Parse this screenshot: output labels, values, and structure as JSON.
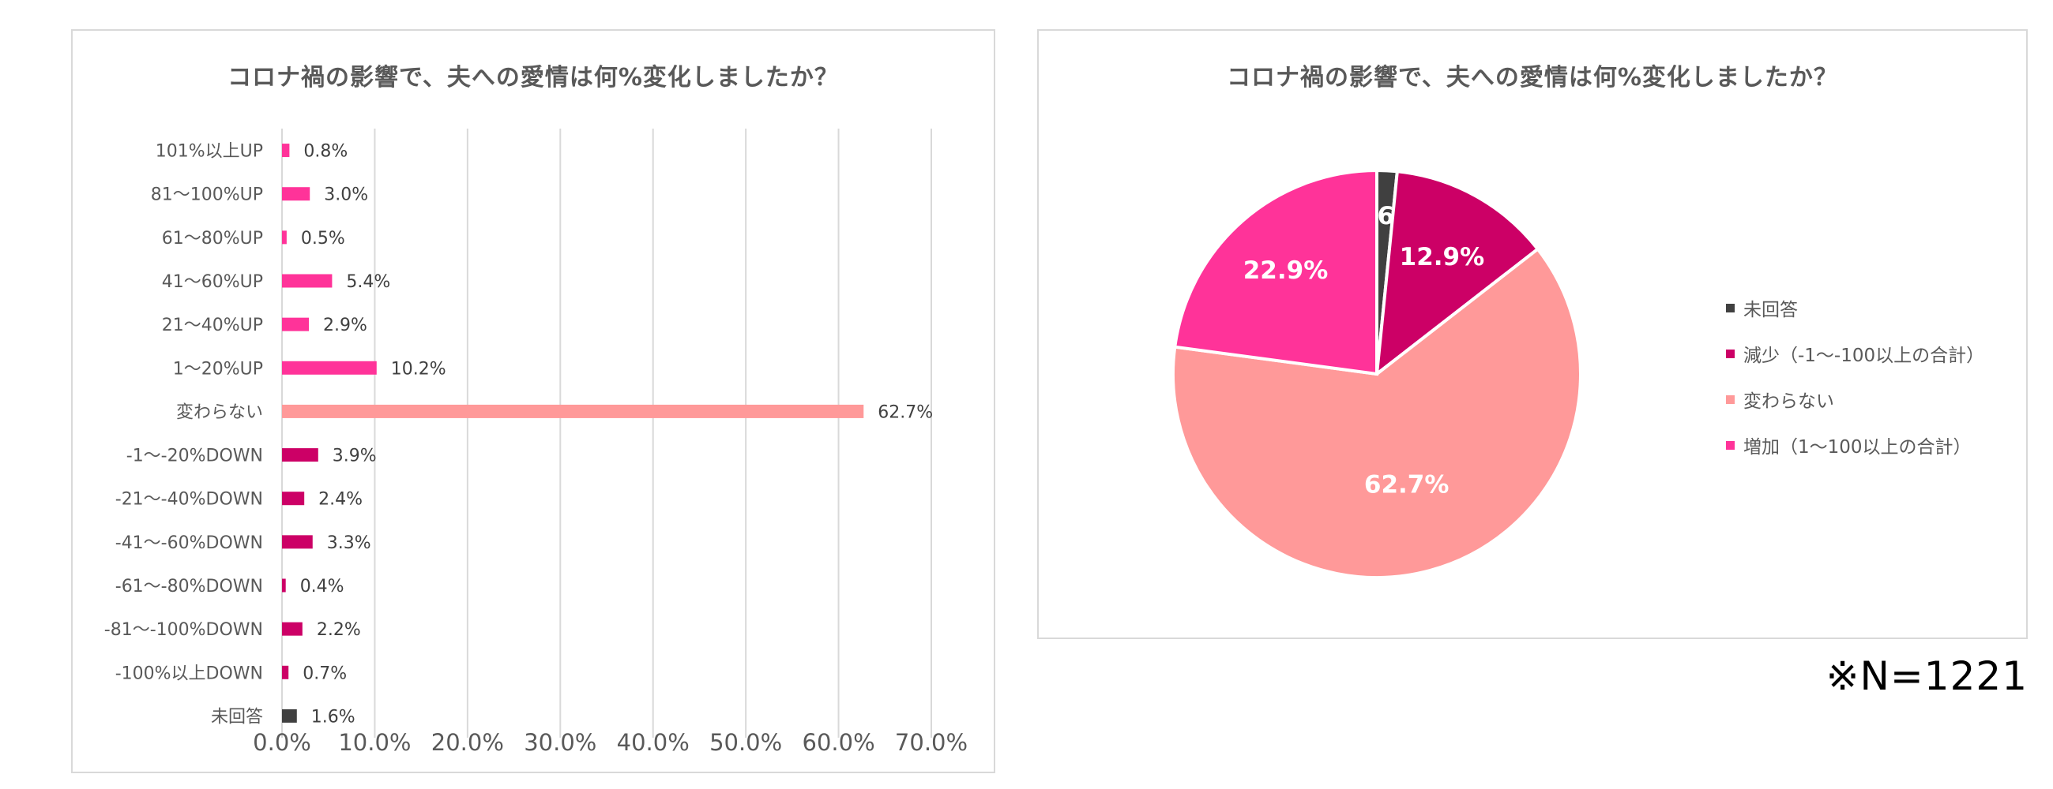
{
  "chart_data": [
    {
      "type": "bar",
      "orientation": "horizontal",
      "title": "コロナ禍の影響で、夫への愛情は何%変化しましたか？",
      "categories": [
        "101%以上UP",
        "81〜100%UP",
        "61〜80%UP",
        "41〜60%UP",
        "21〜40%UP",
        "1〜20%UP",
        "変わらない",
        "-1〜-20%DOWN",
        "-21〜-40%DOWN",
        "-41〜-60%DOWN",
        "-61〜-80%DOWN",
        "-81〜-100%DOWN",
        "-100%以上DOWN",
        "未回答"
      ],
      "values": [
        0.8,
        3.0,
        0.5,
        5.4,
        2.9,
        10.2,
        62.7,
        3.9,
        2.4,
        3.3,
        0.4,
        2.2,
        0.7,
        1.6
      ],
      "value_labels": [
        "0.8%",
        "3.0%",
        "0.5%",
        "5.4%",
        "2.9%",
        "10.2%",
        "62.7%",
        "3.9%",
        "2.4%",
        "3.3%",
        "0.4%",
        "2.2%",
        "0.7%",
        "1.6%"
      ],
      "bar_colors": [
        "#ff3399",
        "#ff3399",
        "#ff3399",
        "#ff3399",
        "#ff3399",
        "#ff3399",
        "#ff9999",
        "#cc0066",
        "#cc0066",
        "#cc0066",
        "#cc0066",
        "#cc0066",
        "#cc0066",
        "#404040"
      ],
      "xlim": [
        0,
        70
      ],
      "x_tick_labels": [
        "0.0%",
        "10.0%",
        "20.0%",
        "30.0%",
        "40.0%",
        "50.0%",
        "60.0%",
        "70.0%"
      ],
      "grid": true
    },
    {
      "type": "pie",
      "title": "コロナ禍の影響で、夫への愛情は何%変化しましたか？",
      "labels": [
        "未回答",
        "減少（-1〜-100以上の合計）",
        "変わらない",
        "増加（1〜100以上の合計）"
      ],
      "values": [
        1.6,
        12.9,
        62.7,
        22.9
      ],
      "value_labels": [
        "1.6%",
        "12.9%",
        "62.7%",
        "22.9%"
      ],
      "colors": [
        "#404040",
        "#cc0066",
        "#ff9999",
        "#ff3399"
      ],
      "legend_position": "right"
    }
  ],
  "note": "※N=1221"
}
